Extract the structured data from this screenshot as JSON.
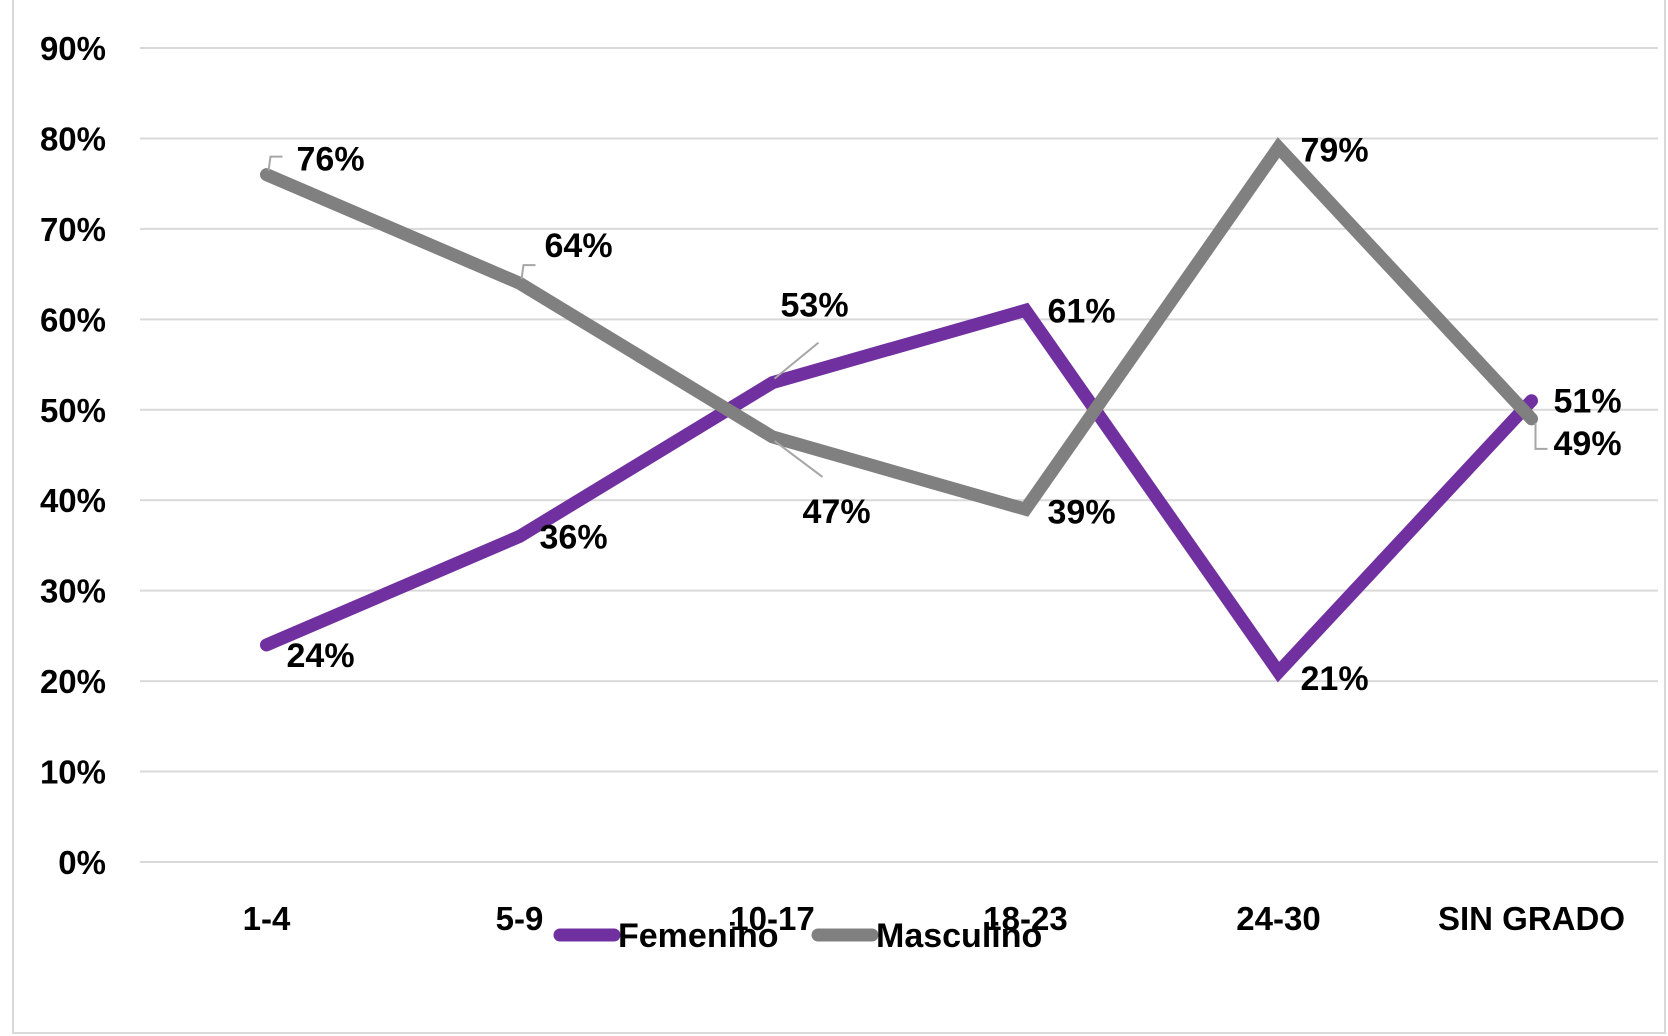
{
  "chart_data": {
    "type": "line",
    "title": "",
    "categories": [
      "1-4",
      "5-9",
      "10-17",
      "18-23",
      "24-30",
      "SIN GRADO"
    ],
    "series": [
      {
        "name": "Femenino",
        "color": "#7030a0",
        "values": [
          24,
          36,
          53,
          61,
          21,
          51
        ],
        "labels": [
          "24%",
          "36%",
          "53%",
          "61%",
          "21%",
          "51%"
        ]
      },
      {
        "name": "Masculino",
        "color": "#808080",
        "values": [
          76,
          64,
          47,
          39,
          79,
          49
        ],
        "labels": [
          "76%",
          "64%",
          "47%",
          "39%",
          "79%",
          "49%"
        ]
      }
    ],
    "yticks": [
      "0%",
      "10%",
      "20%",
      "30%",
      "40%",
      "50%",
      "60%",
      "70%",
      "80%",
      "90%"
    ],
    "ylim": [
      0,
      90
    ],
    "grid": true,
    "legend": "bottom"
  }
}
